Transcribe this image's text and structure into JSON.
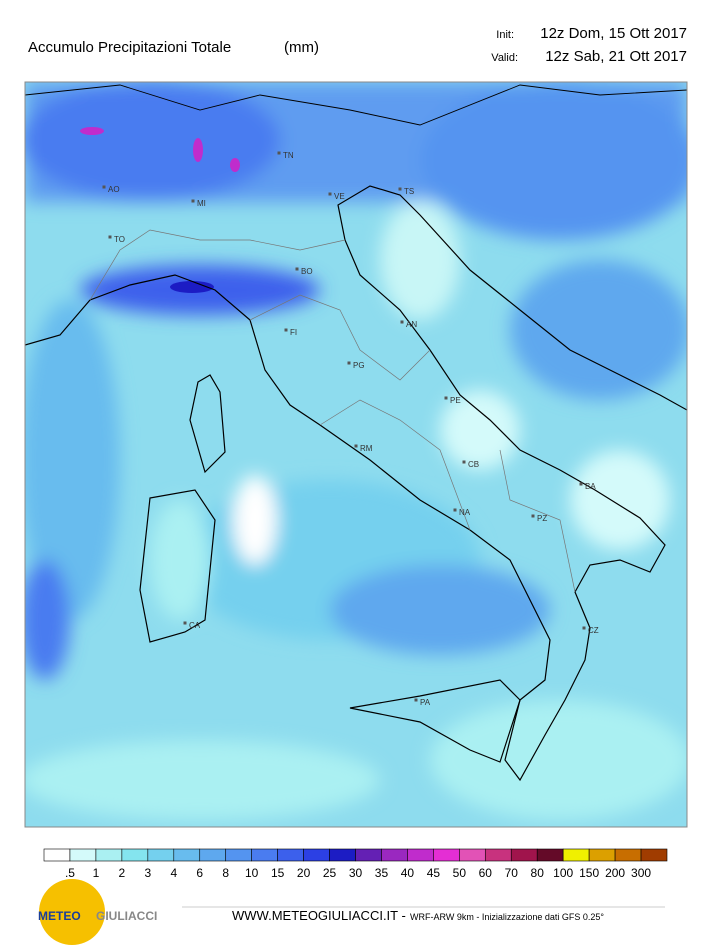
{
  "header": {
    "title": "Accumulo Precipitazioni Totale",
    "unit": "(mm)",
    "init_label": "Init:",
    "init": "12z Dom, 15 Ott 2017",
    "valid_label": "Valid:",
    "valid": "12z Sab, 21 Ott 2017"
  },
  "map": {
    "cities": [
      "AO",
      "MI",
      "TO",
      "TN",
      "VE",
      "TS",
      "BO",
      "FI",
      "AN",
      "PG",
      "PE",
      "RM",
      "CB",
      "BA",
      "NA",
      "PZ",
      "CA",
      "CZ",
      "PA"
    ]
  },
  "legend": {
    "labels": [
      ".5",
      "1",
      "2",
      "3",
      "4",
      "6",
      "8",
      "10",
      "15",
      "20",
      "25",
      "30",
      "35",
      "40",
      "45",
      "50",
      "60",
      "70",
      "80",
      "100",
      "150",
      "200",
      "300"
    ],
    "colors": [
      "#ffffff",
      "#d4fafa",
      "#aaf0f2",
      "#84e4ee",
      "#74d0ee",
      "#68bcee",
      "#5ea8ee",
      "#5494f0",
      "#4a7cf0",
      "#3c60ec",
      "#2c40e4",
      "#1c1cc4",
      "#6420b4",
      "#9a28c0",
      "#c02ccc",
      "#e42ed4",
      "#e252b6",
      "#c8327e",
      "#a0144c",
      "#640a28",
      "#f0f000",
      "#dca000",
      "#c86e00",
      "#a03c00"
    ]
  },
  "footer": {
    "logo_a": "METEO",
    "logo_b": "GIULIACCI",
    "site": "WWW.METEOGIULIACCI.IT -",
    "model": "WRF-ARW 9km - Inizializzazione dati GFS 0.25°"
  }
}
